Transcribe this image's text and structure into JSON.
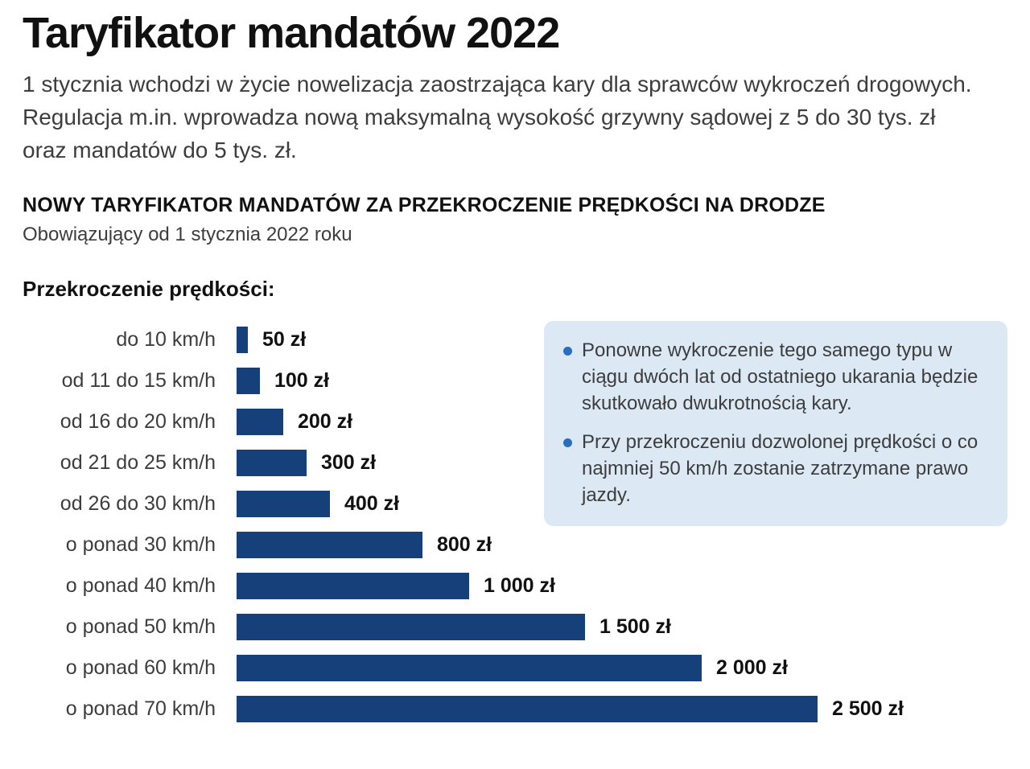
{
  "page": {
    "title": "Taryfikator mandatów 2022",
    "intro": "1 stycznia wchodzi w życie nowelizacja zaostrzająca kary dla sprawców wykroczeń drogowych. Regulacja m.in. wprowadza nową maksymalną wysokość grzywny sądowej z 5 do 30 tys. zł oraz mandatów do 5 tys. zł.",
    "section_header": "NOWY TARYFIKATOR MANDATÓW ZA PRZEKROCZENIE PRĘDKOŚCI NA DRODZE",
    "section_sub": "Obowiązujący od 1 stycznia 2022 roku",
    "chart_title": "Przekroczenie prędkości:"
  },
  "info_box": {
    "bullets": [
      "Ponowne wykroczenie tego samego typu w ciągu dwóch lat od ostatniego ukarania będzie skutkowało dwukrotnością kary.",
      "Przy przekroczeniu dozwolonej prędkości o co najmniej 50 km/h zostanie zatrzymane prawo jazdy."
    ],
    "background_color": "#dce9f5",
    "bullet_color": "#2a6ebb"
  },
  "chart_data": {
    "type": "bar",
    "orientation": "horizontal",
    "title": "Przekroczenie prędkości:",
    "categories": [
      "do 10 km/h",
      "od 11 do 15 km/h",
      "od 16 do 20 km/h",
      "od 21 do 25 km/h",
      "od 26 do 30 km/h",
      "o ponad 30 km/h",
      "o ponad 40 km/h",
      "o ponad 50 km/h",
      "o ponad 60 km/h",
      "o ponad 70 km/h"
    ],
    "values": [
      50,
      100,
      200,
      300,
      400,
      800,
      1000,
      1500,
      2000,
      2500
    ],
    "value_labels": [
      "50 zł",
      "100 zł",
      "200 zł",
      "300 zł",
      "400 zł",
      "800 zł",
      "1 000 zł",
      "1 500 zł",
      "2 000 zł",
      "2 500 zł"
    ],
    "unit": "zł",
    "xlim": [
      0,
      2500
    ],
    "grid": false,
    "legend": "none",
    "bar_color": "#16407a"
  }
}
